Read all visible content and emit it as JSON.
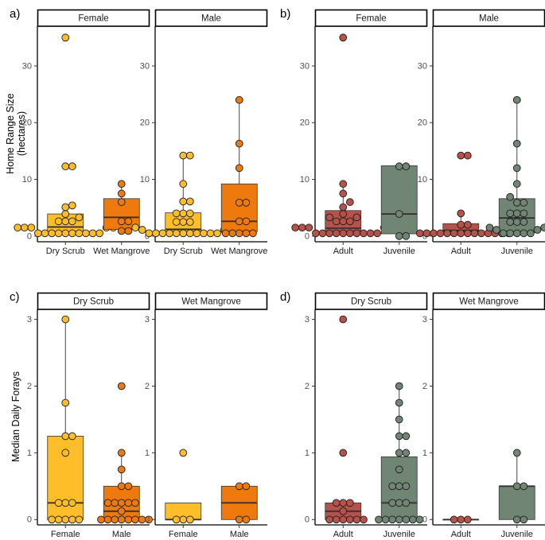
{
  "colors": {
    "dry_scrub": "#FDBE2A",
    "wet_mangrove": "#EE7A0E",
    "adult": "#B5534A",
    "juvenile": "#718574",
    "ink": "#222222",
    "axis_text": "#4D4D4D"
  },
  "chart_data": [
    {
      "panel": "a)",
      "type": "boxplot",
      "ylabel": "Home Range Size\n(hectares)",
      "ylim": [
        -1,
        37
      ],
      "yticks": [
        0,
        10,
        20,
        30
      ],
      "facets": [
        {
          "strip": "Female",
          "groups": [
            {
              "label": "Dry Scrub",
              "color": "dry_scrub",
              "box": {
                "q1": 0.6,
                "median": 1.6,
                "q3": 3.9,
                "whisker_low": 0.5,
                "whisker_high": 5.3
              },
              "points": [
                0.5,
                0.5,
                0.5,
                0.5,
                0.5,
                0.5,
                0.5,
                0.5,
                0.5,
                0.5,
                1.5,
                1.5,
                1.5,
                1.5,
                1.5,
                2.6,
                2.6,
                2.6,
                3.3,
                3.9,
                5.1,
                5.4,
                12.3,
                12.3,
                35.0
              ]
            },
            {
              "label": "Wet Mangrove",
              "color": "wet_mangrove",
              "box": {
                "q1": 1.2,
                "median": 3.3,
                "q3": 6.6,
                "whisker_low": 0.9,
                "whisker_high": 9.2
              },
              "points": [
                0.9,
                0.9,
                2.6,
                2.6,
                6.0,
                7.5,
                9.2
              ]
            }
          ]
        },
        {
          "strip": "Male",
          "groups": [
            {
              "label": "Dry Scrub",
              "color": "dry_scrub",
              "box": {
                "q1": 0.6,
                "median": 1.2,
                "q3": 4.1,
                "whisker_low": 0.5,
                "whisker_high": 14.2
              },
              "points": [
                0.5,
                0.5,
                0.5,
                0.5,
                0.5,
                0.5,
                0.5,
                0.5,
                0.5,
                0.5,
                0.5,
                1.1,
                1.1,
                1.1,
                1.5,
                1.5,
                2.5,
                2.5,
                2.5,
                4.0,
                4.0,
                4.0,
                6.1,
                6.1,
                9.2,
                14.2,
                14.2
              ]
            },
            {
              "label": "Wet Mangrove",
              "color": "wet_mangrove",
              "box": {
                "q1": 0.8,
                "median": 2.6,
                "q3": 9.2,
                "whisker_low": 0.5,
                "whisker_high": 24.0
              },
              "points": [
                0.5,
                0.5,
                0.5,
                0.5,
                0.5,
                2.6,
                2.6,
                5.9,
                5.9,
                12.0,
                16.3,
                24.0
              ]
            }
          ]
        }
      ]
    },
    {
      "panel": "b)",
      "type": "boxplot",
      "ylabel": "",
      "ylim": [
        -1,
        37
      ],
      "yticks": [
        0,
        10,
        20,
        30
      ],
      "facets": [
        {
          "strip": "Female",
          "groups": [
            {
              "label": "Adult",
              "color": "adult",
              "box": {
                "q1": 0.6,
                "median": 1.4,
                "q3": 4.5,
                "whisker_low": 0.5,
                "whisker_high": 9.2
              },
              "points": [
                0.5,
                0.5,
                0.5,
                0.5,
                0.5,
                0.5,
                0.5,
                0.5,
                0.5,
                0.5,
                1.5,
                1.5,
                1.5,
                1.5,
                1.5,
                2.6,
                2.6,
                2.6,
                3.3,
                3.3,
                3.9,
                5.1,
                6.0,
                7.5,
                9.2,
                35.0
              ]
            },
            {
              "label": "Juvenile",
              "color": "juvenile",
              "box": {
                "q1": 0.4,
                "median": 3.9,
                "q3": 12.4,
                "whisker_low": 0.0,
                "whisker_high": 12.4
              },
              "points": [
                0.0,
                0.0,
                3.9,
                12.3,
                12.3
              ]
            }
          ]
        },
        {
          "strip": "Male",
          "groups": [
            {
              "label": "Adult",
              "color": "adult",
              "box": {
                "q1": 0.6,
                "median": 1.0,
                "q3": 2.2,
                "whisker_low": 0.5,
                "whisker_high": 4.0
              },
              "points": [
                0.5,
                0.5,
                0.5,
                0.5,
                0.5,
                0.5,
                0.5,
                0.5,
                0.5,
                0.5,
                0.5,
                0.5,
                0.5,
                0.5,
                2.0,
                2.0,
                4.0,
                14.2,
                14.2
              ]
            },
            {
              "label": "Juvenile",
              "color": "juvenile",
              "box": {
                "q1": 0.6,
                "median": 3.2,
                "q3": 6.6,
                "whisker_low": 0.5,
                "whisker_high": 24.0
              },
              "points": [
                0.5,
                0.5,
                0.5,
                0.5,
                0.5,
                1.1,
                1.1,
                1.5,
                1.5,
                2.5,
                2.5,
                2.5,
                4.0,
                4.0,
                4.0,
                5.9,
                5.9,
                6.9,
                9.2,
                12.0,
                16.3,
                24.0
              ]
            }
          ]
        }
      ]
    },
    {
      "panel": "c)",
      "type": "boxplot",
      "ylabel": "Median Daily Forays",
      "ylim": [
        -0.08,
        3.15
      ],
      "yticks": [
        0,
        1,
        2,
        3
      ],
      "facets": [
        {
          "strip": "Dry Scrub",
          "groups": [
            {
              "label": "Female",
              "color": "dry_scrub",
              "box": {
                "q1": 0.0,
                "median": 0.25,
                "q3": 1.25,
                "whisker_low": 0.0,
                "whisker_high": 3.0
              },
              "points": [
                0,
                0,
                0,
                0,
                0,
                0.25,
                0.25,
                0.25,
                1.0,
                1.25,
                1.25,
                1.75,
                3.0
              ]
            },
            {
              "label": "Male",
              "color": "wet_mangrove",
              "box": {
                "q1": 0.0,
                "median": 0.125,
                "q3": 0.5,
                "whisker_low": 0.0,
                "whisker_high": 1.0
              },
              "points": [
                0,
                0,
                0,
                0,
                0,
                0,
                0,
                0,
                0.125,
                0.25,
                0.25,
                0.25,
                0.25,
                0.25,
                0.5,
                0.5,
                0.75,
                1.0,
                2.0
              ]
            }
          ]
        },
        {
          "strip": "Wet Mangrove",
          "groups": [
            {
              "label": "Female",
              "color": "dry_scrub",
              "box": {
                "q1": 0.0,
                "median": 0.0,
                "q3": 0.25,
                "whisker_low": 0.0,
                "whisker_high": 0.25
              },
              "points": [
                0,
                0,
                0,
                1.0
              ]
            },
            {
              "label": "Male",
              "color": "wet_mangrove",
              "box": {
                "q1": 0.0,
                "median": 0.25,
                "q3": 0.5,
                "whisker_low": 0.0,
                "whisker_high": 0.5
              },
              "points": [
                0,
                0,
                0.5,
                0.5
              ]
            }
          ]
        }
      ]
    },
    {
      "panel": "d)",
      "type": "boxplot",
      "ylabel": "",
      "ylim": [
        -0.08,
        3.15
      ],
      "yticks": [
        0,
        1,
        2,
        3
      ],
      "facets": [
        {
          "strip": "Dry Scrub",
          "groups": [
            {
              "label": "Adult",
              "color": "adult",
              "box": {
                "q1": 0.0,
                "median": 0.125,
                "q3": 0.25,
                "whisker_low": 0.0,
                "whisker_high": 0.25
              },
              "points": [
                0,
                0,
                0,
                0,
                0,
                0,
                0.125,
                0.25,
                0.25,
                0.25,
                1.0,
                3.0
              ]
            },
            {
              "label": "Juvenile",
              "color": "juvenile",
              "box": {
                "q1": 0.0,
                "median": 0.25,
                "q3": 0.94,
                "whisker_low": 0.0,
                "whisker_high": 2.0
              },
              "points": [
                0,
                0,
                0,
                0,
                0,
                0,
                0,
                0.25,
                0.25,
                0.25,
                0.5,
                0.5,
                0.5,
                0.75,
                1.0,
                1.0,
                1.25,
                1.25,
                1.5,
                1.75,
                2.0
              ]
            }
          ]
        },
        {
          "strip": "Wet Mangrove",
          "groups": [
            {
              "label": "Adult",
              "color": "adult",
              "box": {
                "q1": 0.0,
                "median": 0.0,
                "q3": 0.0,
                "whisker_low": 0.0,
                "whisker_high": 0.0
              },
              "points": [
                0,
                0,
                0
              ]
            },
            {
              "label": "Juvenile",
              "color": "juvenile",
              "box": {
                "q1": 0.0,
                "median": 0.5,
                "q3": 0.5,
                "whisker_low": 0.0,
                "whisker_high": 1.0
              },
              "points": [
                0,
                0,
                0.5,
                0.5,
                1.0
              ]
            }
          ]
        }
      ]
    }
  ]
}
